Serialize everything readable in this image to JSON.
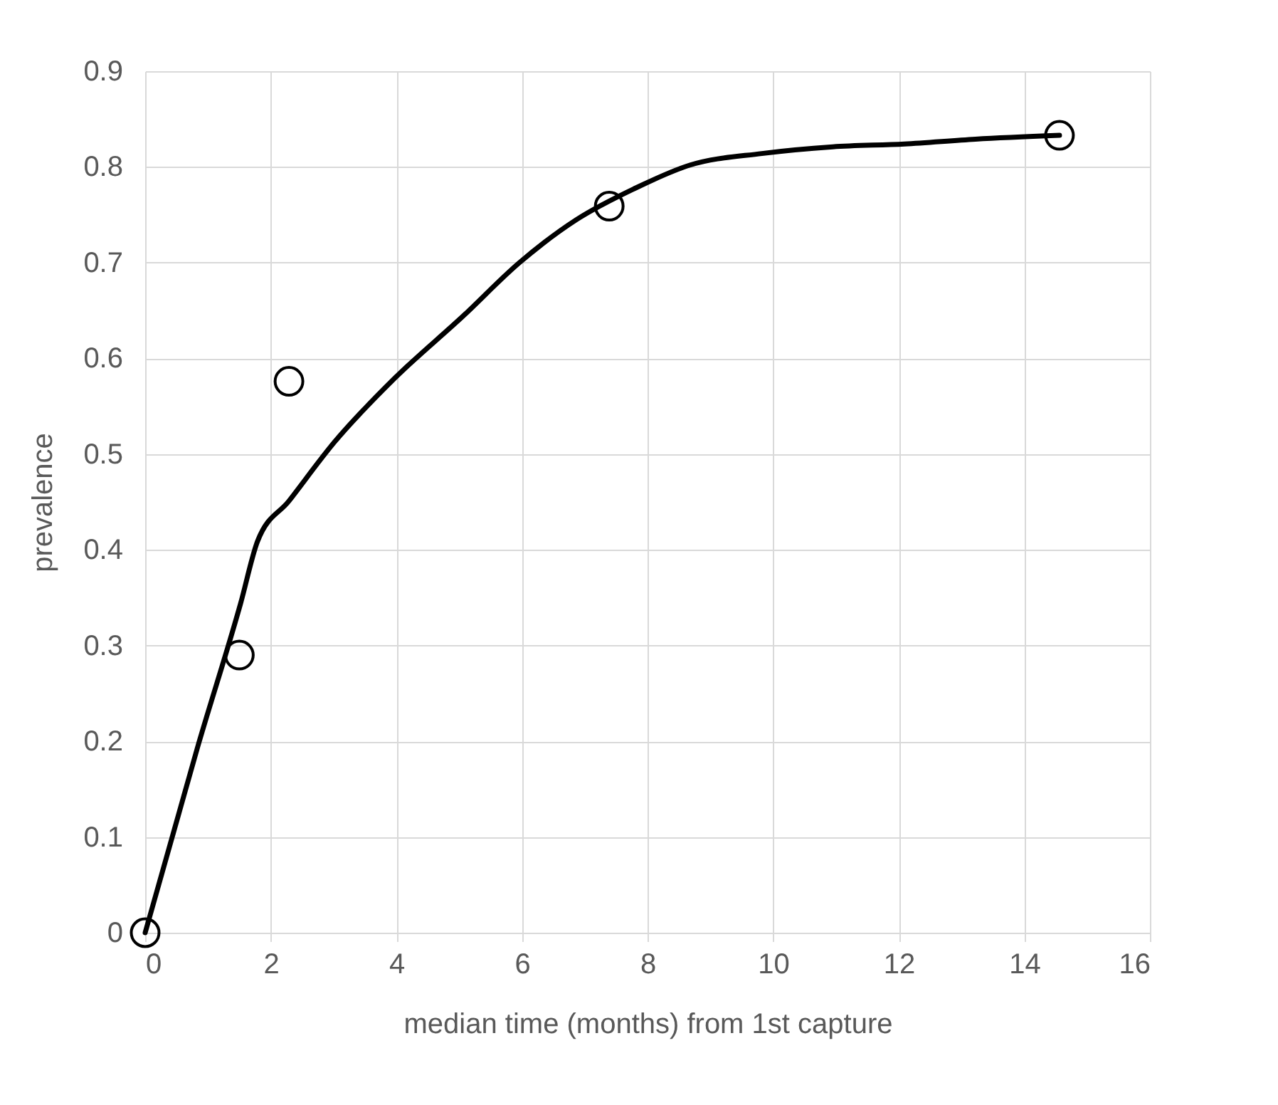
{
  "chart_data": {
    "type": "scatter",
    "xlabel": "median time (months) from 1st capture",
    "ylabel": "prevalence",
    "xlim": [
      0,
      16
    ],
    "xticks": [
      0,
      2,
      4,
      6,
      8,
      10,
      12,
      14,
      16
    ],
    "ylim": [
      0,
      0.9
    ],
    "yticks": [
      0,
      0.1,
      0.2,
      0.3,
      0.4,
      0.5,
      0.6,
      0.7,
      0.8,
      0.9
    ],
    "grid": true,
    "series": [
      {
        "marker": "circle",
        "color": "#000000",
        "x": [
          0,
          1.5,
          2.29,
          7.39,
          14.56
        ],
        "values": [
          0,
          0.29,
          0.576,
          0.759,
          0.833
        ]
      },
      {
        "type": "line",
        "marker": "none",
        "line_style": "solid",
        "color": "#000000",
        "x": [
          0,
          0.84,
          1.52,
          1.79,
          2.29,
          3.02,
          3.97,
          5.06,
          5.96,
          6.87,
          7.78,
          8.68,
          9.82,
          10.95,
          12.09,
          13.22,
          14.56
        ],
        "values": [
          0,
          0.195,
          0.344,
          0.409,
          0.451,
          0.513,
          0.579,
          0.644,
          0.7,
          0.745,
          0.777,
          0.802,
          0.814,
          0.821,
          0.824,
          0.829,
          0.833
        ]
      }
    ]
  }
}
